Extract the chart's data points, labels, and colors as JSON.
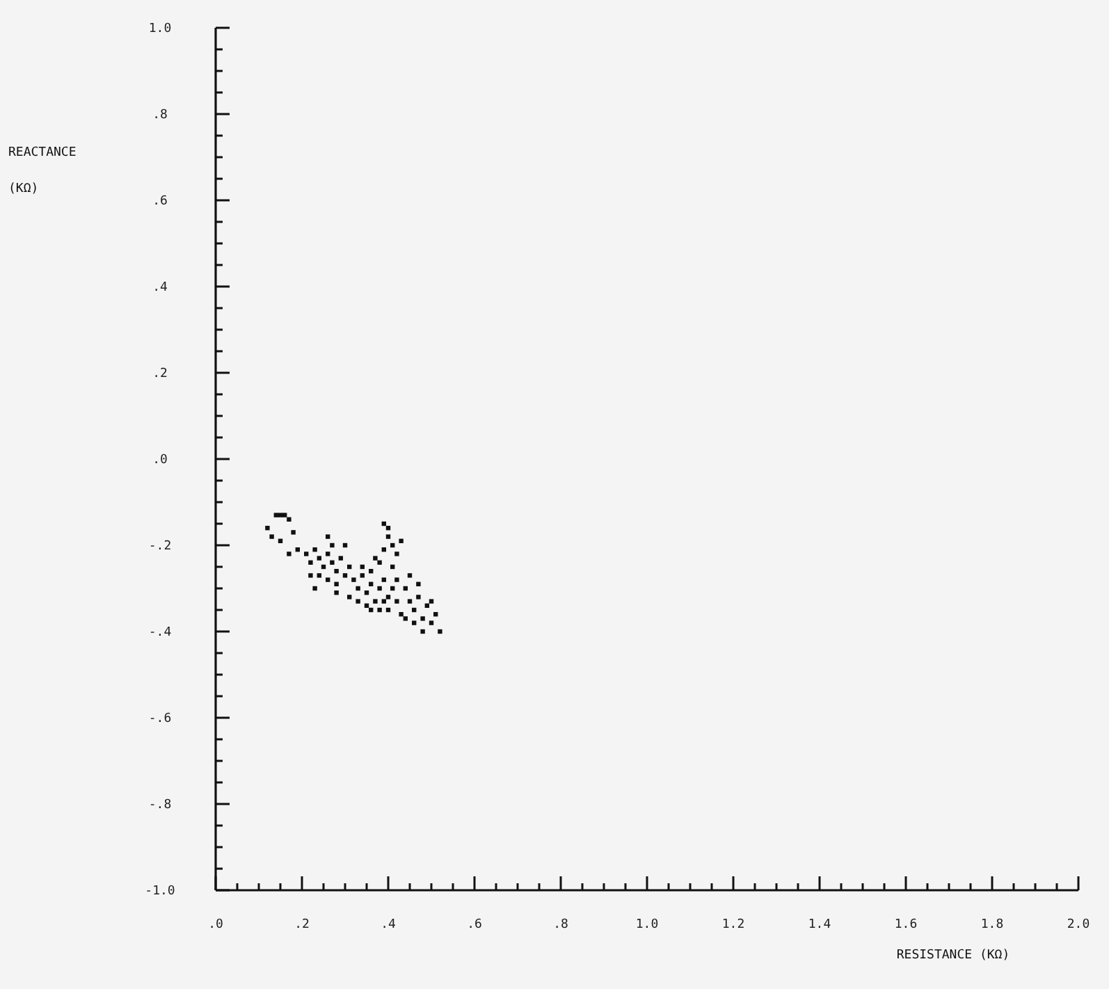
{
  "chart_data": {
    "type": "scatter",
    "xlabel": "RESISTANCE (KΩ)",
    "ylabel": "REACTANCE (KΩ)",
    "xlim": [
      0,
      2
    ],
    "ylim": [
      -1,
      1
    ],
    "marker": "square",
    "grid": false,
    "xticks": [
      {
        "value": 0,
        "label": ".0"
      },
      {
        "value": 0.2,
        "label": ".2"
      },
      {
        "value": 0.4,
        "label": ".4"
      },
      {
        "value": 0.6,
        "label": ".6"
      },
      {
        "value": 0.8,
        "label": ".8"
      },
      {
        "value": 1,
        "label": "1.0"
      },
      {
        "value": 1.2,
        "label": "1.2"
      },
      {
        "value": 1.4,
        "label": "1.4"
      },
      {
        "value": 1.6,
        "label": "1.6"
      },
      {
        "value": 1.8,
        "label": "1.8"
      },
      {
        "value": 2,
        "label": "2.0"
      },
      {
        "value": 0.05,
        "label": null
      },
      {
        "value": 0.1,
        "label": null
      },
      {
        "value": 0.15,
        "label": null
      },
      {
        "value": 0.25,
        "label": null
      },
      {
        "value": 0.3,
        "label": null
      },
      {
        "value": 0.35,
        "label": null
      },
      {
        "value": 0.45,
        "label": null
      },
      {
        "value": 0.5,
        "label": null
      },
      {
        "value": 0.55,
        "label": null
      },
      {
        "value": 0.65,
        "label": null
      },
      {
        "value": 0.7,
        "label": null
      },
      {
        "value": 0.75,
        "label": null
      },
      {
        "value": 0.85,
        "label": null
      },
      {
        "value": 0.9,
        "label": null
      },
      {
        "value": 0.95,
        "label": null
      },
      {
        "value": 1.05,
        "label": null
      },
      {
        "value": 1.1,
        "label": null
      },
      {
        "value": 1.15,
        "label": null
      },
      {
        "value": 1.25,
        "label": null
      },
      {
        "value": 1.3,
        "label": null
      },
      {
        "value": 1.35,
        "label": null
      },
      {
        "value": 1.45,
        "label": null
      },
      {
        "value": 1.5,
        "label": null
      },
      {
        "value": 1.55,
        "label": null
      },
      {
        "value": 1.65,
        "label": null
      },
      {
        "value": 1.7,
        "label": null
      },
      {
        "value": 1.75,
        "label": null
      },
      {
        "value": 1.85,
        "label": null
      },
      {
        "value": 1.9,
        "label": null
      },
      {
        "value": 1.95,
        "label": null
      }
    ],
    "yticks": [
      {
        "value": 1,
        "label": "1.0"
      },
      {
        "value": 0.8,
        "label": ".8"
      },
      {
        "value": 0.6,
        "label": ".6"
      },
      {
        "value": 0.4,
        "label": ".4"
      },
      {
        "value": 0.2,
        "label": ".2"
      },
      {
        "value": 0,
        "label": ".0"
      },
      {
        "value": -0.2,
        "label": "-.2"
      },
      {
        "value": -0.4,
        "label": "-.4"
      },
      {
        "value": -0.6,
        "label": "-.6"
      },
      {
        "value": -0.8,
        "label": "-.8"
      },
      {
        "value": -1,
        "label": "-1.0"
      },
      {
        "value": 0.95,
        "label": null
      },
      {
        "value": 0.9,
        "label": null
      },
      {
        "value": 0.85,
        "label": null
      },
      {
        "value": 0.75,
        "label": null
      },
      {
        "value": 0.7,
        "label": null
      },
      {
        "value": 0.65,
        "label": null
      },
      {
        "value": 0.55,
        "label": null
      },
      {
        "value": 0.5,
        "label": null
      },
      {
        "value": 0.45,
        "label": null
      },
      {
        "value": 0.35,
        "label": null
      },
      {
        "value": 0.3,
        "label": null
      },
      {
        "value": 0.25,
        "label": null
      },
      {
        "value": 0.15,
        "label": null
      },
      {
        "value": 0.1,
        "label": null
      },
      {
        "value": 0.05,
        "label": null
      },
      {
        "value": -0.05,
        "label": null
      },
      {
        "value": -0.1,
        "label": null
      },
      {
        "value": -0.15,
        "label": null
      },
      {
        "value": -0.25,
        "label": null
      },
      {
        "value": -0.3,
        "label": null
      },
      {
        "value": -0.35,
        "label": null
      },
      {
        "value": -0.45,
        "label": null
      },
      {
        "value": -0.5,
        "label": null
      },
      {
        "value": -0.55,
        "label": null
      },
      {
        "value": -0.65,
        "label": null
      },
      {
        "value": -0.7,
        "label": null
      },
      {
        "value": -0.75,
        "label": null
      },
      {
        "value": -0.85,
        "label": null
      },
      {
        "value": -0.9,
        "label": null
      },
      {
        "value": -0.95,
        "label": null
      }
    ],
    "series": [
      {
        "color": "#111111",
        "x": [
          0.14,
          0.15,
          0.16,
          0.17,
          0.12,
          0.13,
          0.15,
          0.18,
          0.19,
          0.17,
          0.21,
          0.22,
          0.23,
          0.24,
          0.25,
          0.26,
          0.22,
          0.24,
          0.27,
          0.28,
          0.29,
          0.26,
          0.28,
          0.3,
          0.31,
          0.27,
          0.23,
          0.32,
          0.33,
          0.34,
          0.35,
          0.36,
          0.37,
          0.38,
          0.39,
          0.4,
          0.41,
          0.33,
          0.35,
          0.36,
          0.38,
          0.4,
          0.42,
          0.34,
          0.36,
          0.37,
          0.31,
          0.39,
          0.42,
          0.39,
          0.4,
          0.4,
          0.41,
          0.39,
          0.42,
          0.38,
          0.41,
          0.43,
          0.44,
          0.45,
          0.46,
          0.47,
          0.48,
          0.49,
          0.5,
          0.51,
          0.52,
          0.46,
          0.44,
          0.48,
          0.5,
          0.43,
          0.45,
          0.47,
          0.26,
          0.3,
          0.28
        ],
        "values": [
          -0.13,
          -0.13,
          -0.13,
          -0.14,
          -0.16,
          -0.18,
          -0.19,
          -0.17,
          -0.21,
          -0.22,
          -0.22,
          -0.24,
          -0.21,
          -0.23,
          -0.25,
          -0.22,
          -0.27,
          -0.27,
          -0.24,
          -0.26,
          -0.23,
          -0.28,
          -0.29,
          -0.27,
          -0.25,
          -0.2,
          -0.3,
          -0.28,
          -0.3,
          -0.27,
          -0.31,
          -0.29,
          -0.33,
          -0.3,
          -0.28,
          -0.32,
          -0.3,
          -0.33,
          -0.34,
          -0.35,
          -0.35,
          -0.35,
          -0.33,
          -0.25,
          -0.26,
          -0.23,
          -0.32,
          -0.33,
          -0.28,
          -0.15,
          -0.16,
          -0.18,
          -0.2,
          -0.21,
          -0.22,
          -0.24,
          -0.25,
          -0.19,
          -0.3,
          -0.33,
          -0.35,
          -0.32,
          -0.37,
          -0.34,
          -0.38,
          -0.36,
          -0.4,
          -0.38,
          -0.37,
          -0.4,
          -0.33,
          -0.36,
          -0.27,
          -0.29,
          -0.18,
          -0.2,
          -0.31
        ]
      }
    ]
  }
}
